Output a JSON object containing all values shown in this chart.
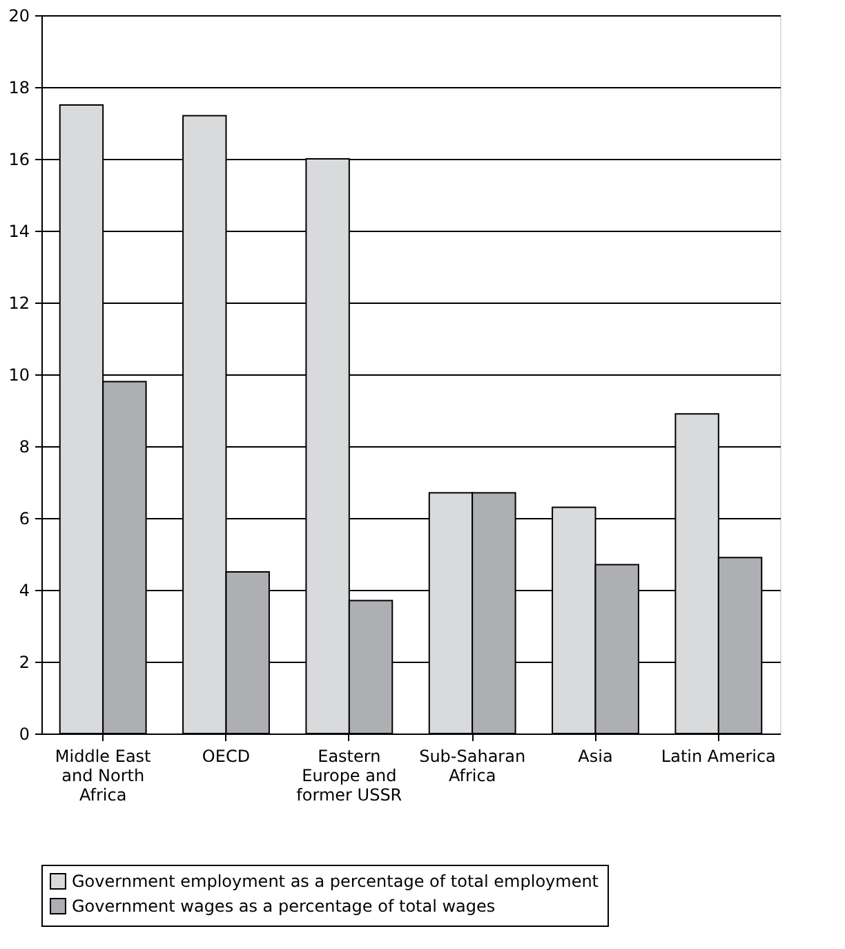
{
  "chart_data": {
    "type": "bar",
    "categories": [
      "Middle East and North Africa",
      "OECD",
      "Eastern Europe and former USSR",
      "Sub-Saharan Africa",
      "Asia",
      "Latin America"
    ],
    "series": [
      {
        "name": "Government employment as a percentage of total employment",
        "color": "#d9dadc",
        "values": [
          17.5,
          17.2,
          16.0,
          6.7,
          6.3,
          8.9
        ]
      },
      {
        "name": "Government wages as a percentage of total wages",
        "color": "#aeafb2",
        "values": [
          9.8,
          4.5,
          3.7,
          6.7,
          4.7,
          4.9
        ]
      }
    ],
    "ylim": [
      0,
      20
    ],
    "yticks": [
      0,
      2,
      4,
      6,
      8,
      10,
      12,
      14,
      16,
      18,
      20
    ],
    "grid": "y",
    "legend": "bottom"
  }
}
